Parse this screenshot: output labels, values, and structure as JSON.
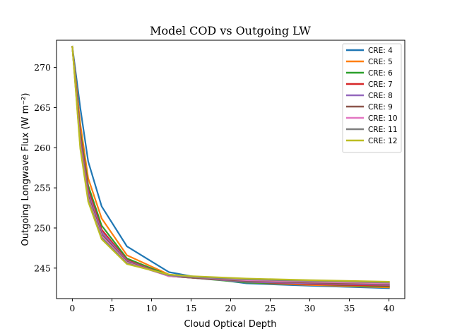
{
  "chart_data": {
    "type": "line",
    "title": "Model COD vs Outgoing LW",
    "xlabel": "Cloud Optical Depth",
    "ylabel": "Outgoing Longwave Flux (W m⁻²)",
    "xlim": [
      -2,
      42
    ],
    "ylim": [
      241.2,
      273.4
    ],
    "xticks": [
      0,
      5,
      10,
      15,
      20,
      25,
      30,
      35,
      40
    ],
    "yticks": [
      245,
      250,
      255,
      260,
      265,
      270
    ],
    "legend_position": "upper right",
    "grid": false,
    "x": [
      0,
      1,
      2,
      3.7,
      6.9,
      12.2,
      15,
      22,
      30,
      40
    ],
    "series": [
      {
        "name": "CRE: 4",
        "color": "#1f77b4",
        "values": [
          272.6,
          265.0,
          258.3,
          252.7,
          247.7,
          244.5,
          244.0,
          243.1,
          242.8,
          242.5
        ]
      },
      {
        "name": "CRE: 5",
        "color": "#ff7f0e",
        "values": [
          272.6,
          263.0,
          256.2,
          251.2,
          246.6,
          244.2,
          243.9,
          243.2,
          242.9,
          242.6
        ]
      },
      {
        "name": "CRE: 6",
        "color": "#2ca02c",
        "values": [
          272.6,
          262.0,
          255.3,
          250.3,
          246.2,
          244.1,
          243.8,
          243.2,
          243.0,
          242.7
        ]
      },
      {
        "name": "CRE: 7",
        "color": "#d62728",
        "values": [
          272.6,
          261.6,
          254.8,
          249.8,
          246.0,
          244.0,
          243.8,
          243.3,
          243.0,
          242.8
        ]
      },
      {
        "name": "CRE: 8",
        "color": "#9467bd",
        "values": [
          272.6,
          261.2,
          254.4,
          249.5,
          245.9,
          244.0,
          243.8,
          243.3,
          243.1,
          242.9
        ]
      },
      {
        "name": "CRE: 9",
        "color": "#8c564b",
        "values": [
          272.6,
          260.9,
          254.0,
          249.2,
          245.8,
          244.0,
          243.8,
          243.4,
          243.2,
          243.0
        ]
      },
      {
        "name": "CRE: 10",
        "color": "#e377c2",
        "values": [
          272.6,
          260.5,
          253.7,
          249.0,
          245.7,
          244.0,
          243.9,
          243.5,
          243.3,
          243.1
        ]
      },
      {
        "name": "CRE: 11",
        "color": "#7f7f7f",
        "values": [
          272.6,
          260.2,
          253.5,
          248.8,
          245.6,
          244.1,
          243.9,
          243.6,
          243.4,
          243.2
        ]
      },
      {
        "name": "CRE: 12",
        "color": "#bcbd22",
        "values": [
          272.6,
          259.9,
          253.3,
          248.6,
          245.5,
          244.2,
          244.0,
          243.7,
          243.5,
          243.3
        ]
      }
    ]
  }
}
